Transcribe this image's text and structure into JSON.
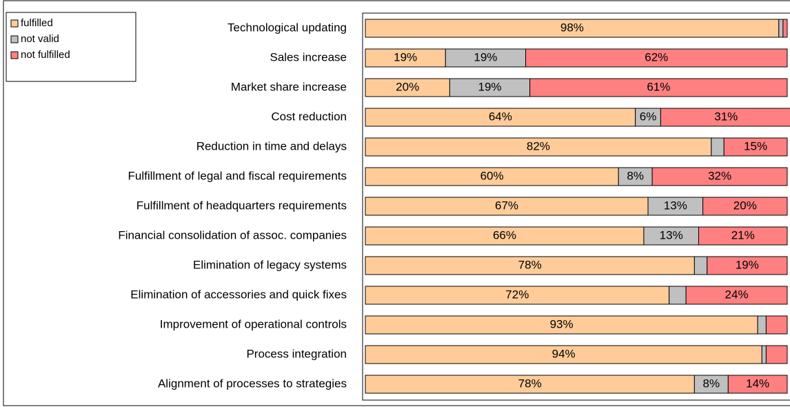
{
  "chart_data": {
    "type": "bar",
    "orientation": "horizontal",
    "stacked": true,
    "categories": [
      "Technological updating",
      "Sales increase",
      "Market share increase",
      "Cost reduction",
      "Reduction in time and delays",
      "Fulfillment of legal and fiscal requirements",
      "Fulfillment of headquarters requirements",
      "Financial consolidation of assoc. companies",
      "Elimination of legacy systems",
      "Elimination of accessories and quick fixes",
      "Improvement of operational controls",
      "Process integration",
      "Alignment of processes to strategies"
    ],
    "series": [
      {
        "name": "fulfilled",
        "color": "#ffcc99",
        "values": [
          98,
          19,
          20,
          64,
          82,
          60,
          67,
          66,
          78,
          72,
          93,
          94,
          78
        ],
        "value_labels": [
          "98%",
          "19%",
          "20%",
          "64%",
          "82%",
          "60%",
          "67%",
          "66%",
          "78%",
          "72%",
          "93%",
          "94%",
          "78%"
        ]
      },
      {
        "name": "not valid",
        "color": "#c0c0c0",
        "values": [
          1,
          19,
          19,
          6,
          3,
          8,
          13,
          13,
          3,
          4,
          2,
          1,
          8
        ],
        "value_labels": [
          null,
          "19%",
          "19%",
          "6%",
          null,
          "8%",
          "13%",
          "13%",
          null,
          null,
          null,
          null,
          "8%"
        ]
      },
      {
        "name": "not fulfilled",
        "color": "#ff8080",
        "values": [
          1,
          62,
          61,
          31,
          15,
          32,
          20,
          21,
          19,
          24,
          5,
          5,
          14
        ],
        "value_labels": [
          null,
          "62%",
          "61%",
          "31%",
          "15%",
          "32%",
          "20%",
          "21%",
          "19%",
          "24%",
          null,
          null,
          "14%"
        ]
      }
    ],
    "xlim": [
      0,
      100
    ],
    "legend": "upper left"
  }
}
